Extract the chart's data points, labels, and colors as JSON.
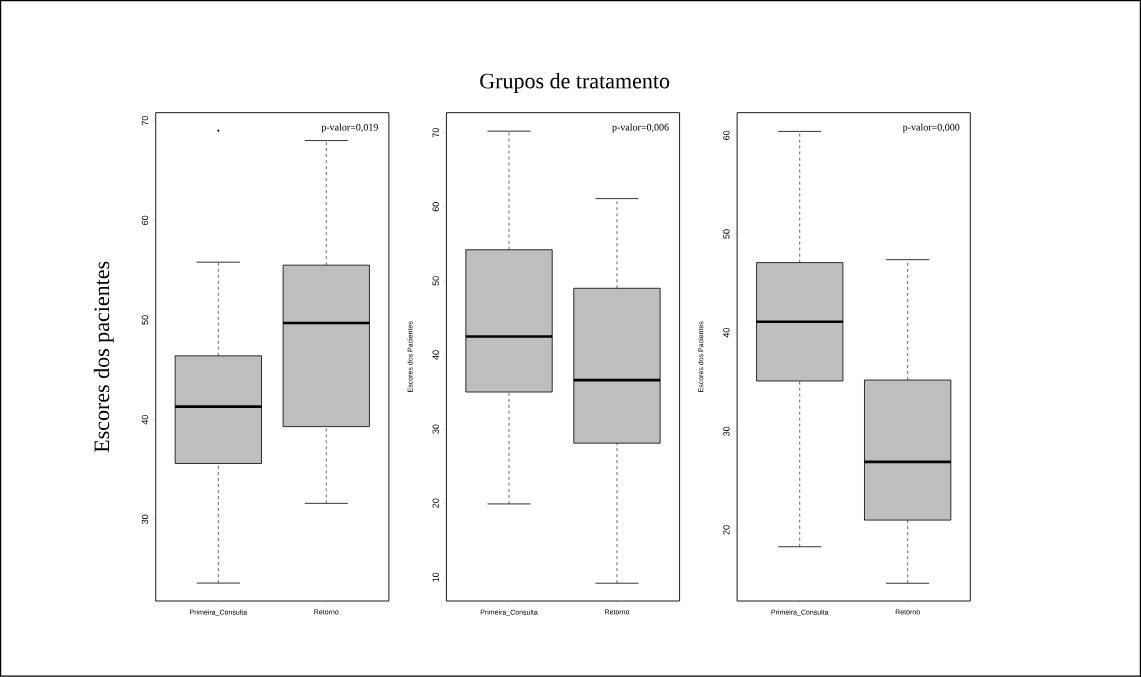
{
  "chart_data": [
    {
      "type": "box",
      "ylabel": "Escores dos pacientes",
      "categories": [
        "Primeira_Consulta",
        "Retorno"
      ],
      "ylim": [
        21.8,
        70.8
      ],
      "yticks": [
        30,
        40,
        50,
        60,
        70
      ],
      "annotations": [
        "p-valor=0,019"
      ],
      "series": [
        {
          "color": "#bebebe",
          "boxes": [
            {
              "low": 23.6,
              "q1": 35.6,
              "median": 41.3,
              "q3": 46.4,
              "high": 55.8,
              "outliers": [
                69.0
              ]
            },
            {
              "low": 31.6,
              "q1": 39.3,
              "median": 49.7,
              "q3": 55.5,
              "high": 68.0
            }
          ]
        }
      ]
    },
    {
      "type": "box",
      "title": "Grupos de tratamento",
      "ylabel": "Escores dos Pacientes",
      "categories": [
        "Primeira_Consulta",
        "Retorno"
      ],
      "ylim": [
        6.8,
        72.7
      ],
      "yticks": [
        10,
        20,
        30,
        40,
        50,
        60,
        70
      ],
      "annotations": [
        "p-valor=0,006"
      ],
      "series": [
        {
          "color": "#bebebe",
          "boxes": [
            {
              "low": 19.9,
              "q1": 35.0,
              "median": 42.5,
              "q3": 54.2,
              "high": 70.2
            },
            {
              "low": 9.2,
              "q1": 28.1,
              "median": 36.6,
              "q3": 49.0,
              "high": 61.1
            }
          ]
        }
      ]
    },
    {
      "type": "box",
      "ylabel": "Escores dos Pacientes",
      "categories": [
        "Primeira_Consulta",
        "Retorno"
      ],
      "ylim": [
        12.8,
        62.3
      ],
      "yticks": [
        20,
        30,
        40,
        50,
        60
      ],
      "annotations": [
        "p-valor=0,000"
      ],
      "series": [
        {
          "color": "#bebebe",
          "boxes": [
            {
              "low": 18.3,
              "q1": 35.1,
              "median": 41.1,
              "q3": 47.1,
              "high": 60.4
            },
            {
              "low": 14.6,
              "q1": 21.0,
              "median": 26.9,
              "q3": 35.2,
              "high": 47.4
            }
          ]
        }
      ]
    }
  ]
}
